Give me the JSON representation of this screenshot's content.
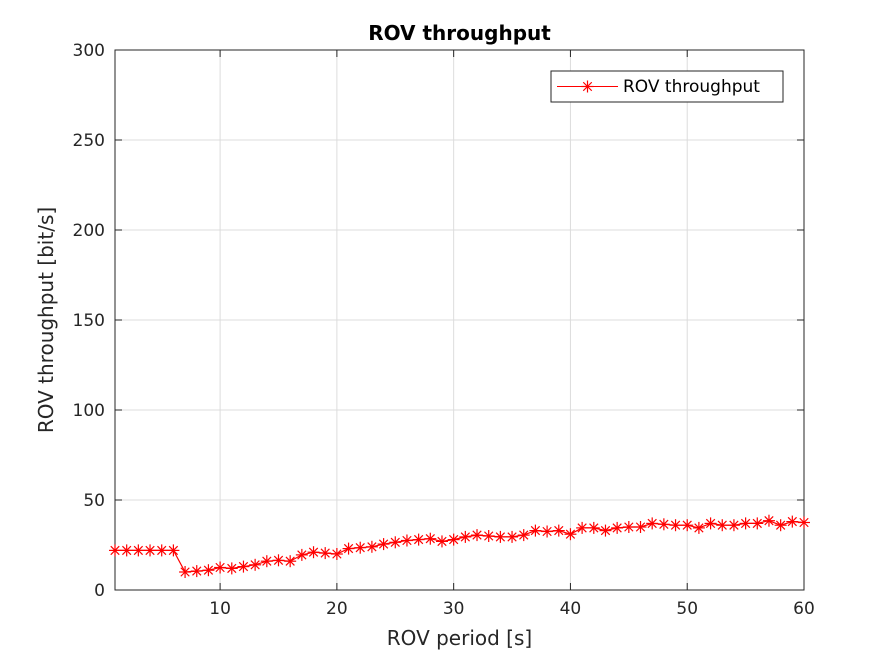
{
  "chart_data": {
    "type": "line",
    "title": "ROV throughput",
    "xlabel": "ROV period [s]",
    "ylabel": "ROV throughput [bit/s]",
    "xlim": [
      1,
      60
    ],
    "ylim": [
      0,
      300
    ],
    "xticks": [
      10,
      20,
      30,
      40,
      50,
      60
    ],
    "yticks": [
      0,
      50,
      100,
      150,
      200,
      250,
      300
    ],
    "grid": true,
    "legend_position": "top-right",
    "series": [
      {
        "name": "ROV throughput",
        "color": "#ff0000",
        "marker": "asterisk",
        "x": [
          1,
          2,
          3,
          4,
          5,
          6,
          7,
          8,
          9,
          10,
          11,
          12,
          13,
          14,
          15,
          16,
          17,
          18,
          19,
          20,
          21,
          22,
          23,
          24,
          25,
          26,
          27,
          28,
          29,
          30,
          31,
          32,
          33,
          34,
          35,
          36,
          37,
          38,
          39,
          40,
          41,
          42,
          43,
          44,
          45,
          46,
          47,
          48,
          49,
          50,
          51,
          52,
          53,
          54,
          55,
          56,
          57,
          58,
          59,
          60
        ],
        "y": [
          22,
          22,
          22,
          22,
          22,
          22,
          10,
          10.5,
          11,
          12.5,
          12,
          13,
          14,
          16,
          16.5,
          16,
          19.5,
          21,
          20.5,
          20,
          23,
          23.5,
          24,
          25.5,
          26.5,
          27.5,
          28,
          28.5,
          27,
          28,
          29.5,
          30.5,
          30,
          29.5,
          29.5,
          30.5,
          33,
          32.5,
          33,
          31,
          34.5,
          34.5,
          33,
          34.5,
          35,
          35,
          37,
          36.5,
          36,
          36,
          34.5,
          37,
          36,
          36,
          37,
          37,
          38.5,
          36,
          38,
          37.5
        ]
      }
    ]
  }
}
